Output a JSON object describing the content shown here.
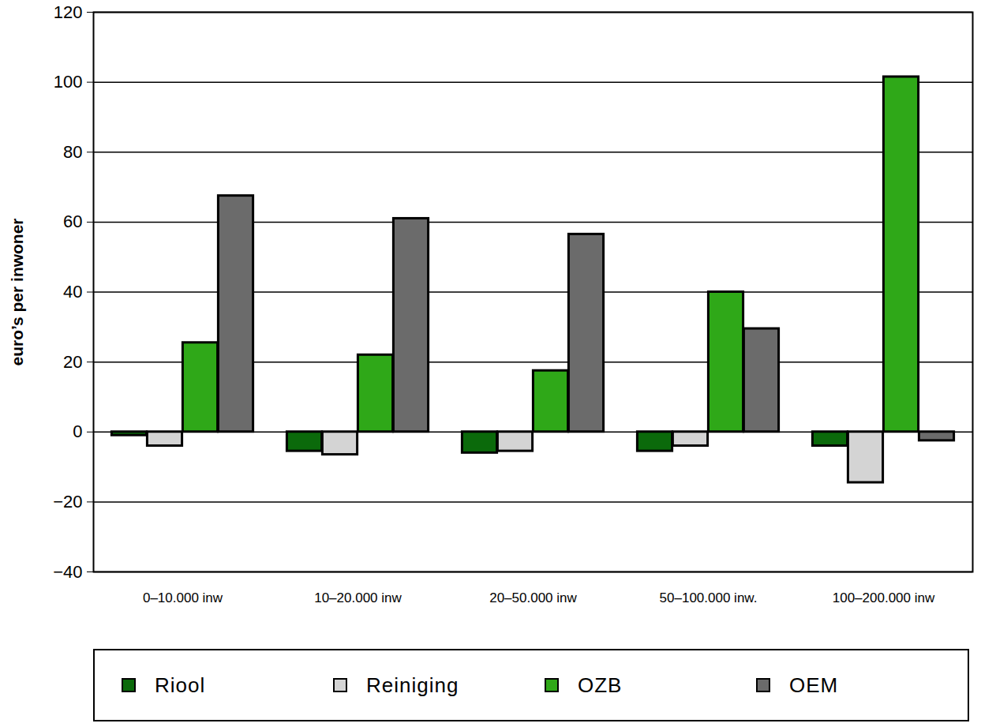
{
  "chart_data": {
    "type": "bar",
    "categories": [
      "0–10.000 inw",
      "10–20.000 inw",
      "20–50.000 inw",
      "50–100.000 inw.",
      "100–200.000 inw"
    ],
    "series": [
      {
        "name": "Riool",
        "color": "#0b6a0b",
        "values": [
          -1,
          -5.5,
          -6,
          -5.5,
          -4
        ]
      },
      {
        "name": "Reiniging",
        "color": "#d4d4d4",
        "values": [
          -4,
          -6.5,
          -5.5,
          -4,
          -14.5
        ]
      },
      {
        "name": "OZB",
        "color": "#2fa818",
        "values": [
          25.5,
          22,
          17.5,
          40,
          101.5
        ]
      },
      {
        "name": "OEM",
        "color": "#6b6b6b",
        "values": [
          67.5,
          61,
          56.5,
          29.5,
          -2.5
        ]
      }
    ],
    "ylabel": "euro’s per inwoner",
    "ylim": [
      -40,
      120
    ],
    "yticks": [
      -40,
      -20,
      0,
      20,
      40,
      60,
      80,
      100,
      120
    ],
    "grid": true,
    "legend": "bottom"
  }
}
